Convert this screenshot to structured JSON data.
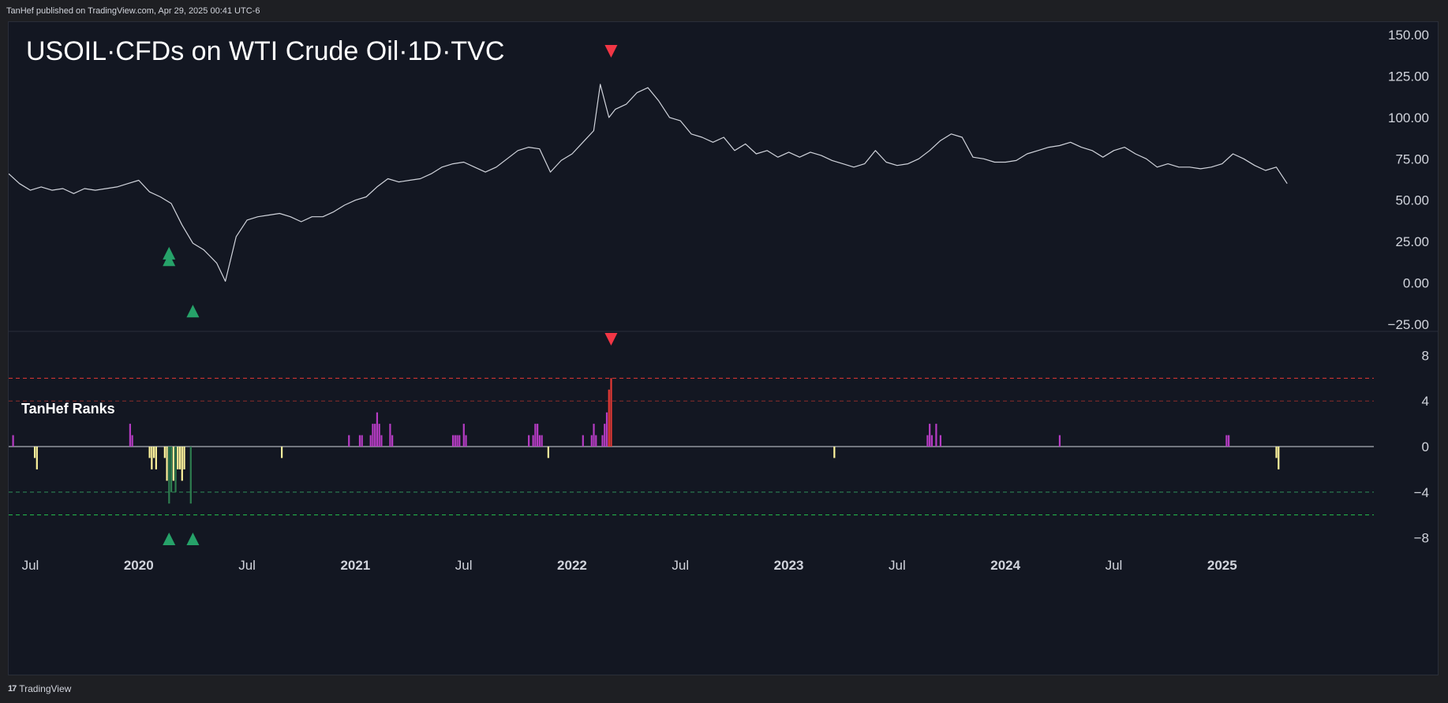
{
  "header": {
    "published": "TanHef published on TradingView.com, Apr 29, 2025 00:41 UTC-6"
  },
  "footer": {
    "brand": "TradingView",
    "logo_glyph": "17"
  },
  "colors": {
    "background": "#131722",
    "price_line": "#d1d4dc",
    "rank_positive": "#b63cc4",
    "rank_negative": "#fff59d",
    "rank_extreme_high": "#e53935",
    "rank_extreme_low": "#2e7d4f",
    "signal_up": "#26a269",
    "signal_down": "#f23645"
  },
  "chart_data": [
    {
      "type": "line",
      "title": "USOIL·CFDs on WTI Crude Oil·1D·TVC",
      "y_ticks": [
        "150.00",
        "125.00",
        "100.00",
        "75.00",
        "50.00",
        "25.00",
        "0.00",
        "−25.00"
      ],
      "ylim": [
        -25,
        150
      ],
      "x_ticks": [
        "Jul",
        "2020",
        "Jul",
        "2021",
        "Jul",
        "2022",
        "Jul",
        "2023",
        "Jul",
        "2024",
        "Jul",
        "2025"
      ],
      "x_tick_years": [
        2019.5,
        2020.0,
        2020.5,
        2021.0,
        2021.5,
        2022.0,
        2022.5,
        2023.0,
        2023.5,
        2024.0,
        2024.5,
        2025.0
      ],
      "xlim": [
        2019.4,
        2025.7
      ],
      "series": [
        {
          "x": [
            2019.4,
            2019.45,
            2019.5,
            2019.55,
            2019.6,
            2019.65,
            2019.7,
            2019.75,
            2019.8,
            2019.85,
            2019.9,
            2019.95,
            2020.0,
            2020.05,
            2020.1,
            2020.15,
            2020.2,
            2020.25,
            2020.3,
            2020.33,
            2020.36,
            2020.4,
            2020.45,
            2020.5,
            2020.55,
            2020.6,
            2020.65,
            2020.7,
            2020.75,
            2020.8,
            2020.85,
            2020.9,
            2020.95,
            2021.0,
            2021.05,
            2021.1,
            2021.15,
            2021.2,
            2021.25,
            2021.3,
            2021.35,
            2021.4,
            2021.45,
            2021.5,
            2021.55,
            2021.6,
            2021.65,
            2021.7,
            2021.75,
            2021.8,
            2021.85,
            2021.9,
            2021.95,
            2022.0,
            2022.05,
            2022.1,
            2022.13,
            2022.17,
            2022.2,
            2022.25,
            2022.3,
            2022.35,
            2022.4,
            2022.45,
            2022.5,
            2022.55,
            2022.6,
            2022.65,
            2022.7,
            2022.75,
            2022.8,
            2022.85,
            2022.9,
            2022.95,
            2023.0,
            2023.05,
            2023.1,
            2023.15,
            2023.2,
            2023.25,
            2023.3,
            2023.35,
            2023.4,
            2023.45,
            2023.5,
            2023.55,
            2023.6,
            2023.65,
            2023.7,
            2023.75,
            2023.8,
            2023.85,
            2023.9,
            2023.95,
            2024.0,
            2024.05,
            2024.1,
            2024.15,
            2024.2,
            2024.25,
            2024.3,
            2024.35,
            2024.4,
            2024.45,
            2024.5,
            2024.55,
            2024.6,
            2024.65,
            2024.7,
            2024.75,
            2024.8,
            2024.85,
            2024.9,
            2024.95,
            2025.0,
            2025.05,
            2025.1,
            2025.15,
            2025.2,
            2025.25,
            2025.3
          ],
          "y": [
            66,
            60,
            56,
            58,
            56,
            57,
            54,
            57,
            56,
            57,
            58,
            60,
            62,
            55,
            52,
            48,
            35,
            24,
            20,
            16,
            12,
            1,
            28,
            38,
            40,
            41,
            42,
            40,
            37,
            40,
            40,
            43,
            47,
            50,
            52,
            58,
            63,
            61,
            62,
            63,
            66,
            70,
            72,
            73,
            70,
            67,
            70,
            75,
            80,
            82,
            81,
            67,
            74,
            78,
            85,
            92,
            120,
            100,
            105,
            108,
            115,
            118,
            110,
            100,
            98,
            90,
            88,
            85,
            88,
            80,
            84,
            78,
            80,
            76,
            79,
            76,
            79,
            77,
            74,
            72,
            70,
            72,
            80,
            73,
            71,
            72,
            75,
            80,
            86,
            90,
            88,
            76,
            75,
            73,
            73,
            74,
            78,
            80,
            82,
            83,
            85,
            82,
            80,
            76,
            80,
            82,
            78,
            75,
            70,
            72,
            70,
            70,
            69,
            70,
            72,
            78,
            75,
            71,
            68,
            70,
            60
          ]
        }
      ]
    },
    {
      "type": "bar",
      "title": "TanHef Ranks",
      "y_ticks": [
        "8",
        "4",
        "0",
        "−4",
        "−8"
      ],
      "ylim": [
        -9,
        9
      ],
      "reference_lines": [
        6,
        4,
        -4,
        -6
      ],
      "bars": [
        {
          "x": 2019.42,
          "v": 1
        },
        {
          "x": 2019.52,
          "v": -1
        },
        {
          "x": 2019.53,
          "v": -2
        },
        {
          "x": 2019.96,
          "v": 2
        },
        {
          "x": 2019.97,
          "v": 1
        },
        {
          "x": 2020.05,
          "v": -1
        },
        {
          "x": 2020.06,
          "v": -2
        },
        {
          "x": 2020.07,
          "v": -1
        },
        {
          "x": 2020.08,
          "v": -2
        },
        {
          "x": 2020.12,
          "v": -1
        },
        {
          "x": 2020.13,
          "v": -3
        },
        {
          "x": 2020.14,
          "v": -5
        },
        {
          "x": 2020.15,
          "v": -4
        },
        {
          "x": 2020.16,
          "v": -3
        },
        {
          "x": 2020.17,
          "v": -4
        },
        {
          "x": 2020.18,
          "v": -2
        },
        {
          "x": 2020.19,
          "v": -2
        },
        {
          "x": 2020.2,
          "v": -3
        },
        {
          "x": 2020.21,
          "v": -2
        },
        {
          "x": 2020.24,
          "v": -5
        },
        {
          "x": 2020.66,
          "v": -1
        },
        {
          "x": 2020.97,
          "v": 1
        },
        {
          "x": 2021.02,
          "v": 1
        },
        {
          "x": 2021.03,
          "v": 1
        },
        {
          "x": 2021.07,
          "v": 1
        },
        {
          "x": 2021.08,
          "v": 2
        },
        {
          "x": 2021.09,
          "v": 2
        },
        {
          "x": 2021.1,
          "v": 3
        },
        {
          "x": 2021.11,
          "v": 2
        },
        {
          "x": 2021.12,
          "v": 1
        },
        {
          "x": 2021.16,
          "v": 2
        },
        {
          "x": 2021.17,
          "v": 1
        },
        {
          "x": 2021.45,
          "v": 1
        },
        {
          "x": 2021.46,
          "v": 1
        },
        {
          "x": 2021.47,
          "v": 1
        },
        {
          "x": 2021.48,
          "v": 1
        },
        {
          "x": 2021.5,
          "v": 2
        },
        {
          "x": 2021.51,
          "v": 1
        },
        {
          "x": 2021.8,
          "v": 1
        },
        {
          "x": 2021.82,
          "v": 1
        },
        {
          "x": 2021.83,
          "v": 2
        },
        {
          "x": 2021.84,
          "v": 2
        },
        {
          "x": 2021.85,
          "v": 1
        },
        {
          "x": 2021.86,
          "v": 1
        },
        {
          "x": 2021.89,
          "v": -1
        },
        {
          "x": 2022.05,
          "v": 1
        },
        {
          "x": 2022.09,
          "v": 1
        },
        {
          "x": 2022.1,
          "v": 2
        },
        {
          "x": 2022.11,
          "v": 1
        },
        {
          "x": 2022.14,
          "v": 1
        },
        {
          "x": 2022.15,
          "v": 2
        },
        {
          "x": 2022.16,
          "v": 3
        },
        {
          "x": 2022.17,
          "v": 5
        },
        {
          "x": 2022.18,
          "v": 6
        },
        {
          "x": 2023.21,
          "v": -1
        },
        {
          "x": 2023.64,
          "v": 1
        },
        {
          "x": 2023.65,
          "v": 2
        },
        {
          "x": 2023.66,
          "v": 1
        },
        {
          "x": 2023.68,
          "v": 2
        },
        {
          "x": 2023.7,
          "v": 1
        },
        {
          "x": 2024.25,
          "v": 1
        },
        {
          "x": 2025.02,
          "v": 1
        },
        {
          "x": 2025.03,
          "v": 1
        },
        {
          "x": 2025.25,
          "v": -1
        },
        {
          "x": 2025.26,
          "v": -2
        }
      ]
    }
  ],
  "signals": {
    "price_up": [
      {
        "x": 2020.14,
        "y": 14
      },
      {
        "x": 2020.14,
        "y": 18
      },
      {
        "x": 2020.25,
        "y": -17
      }
    ],
    "price_down": [
      {
        "x": 2022.18,
        "y": 140
      }
    ],
    "rank_up": [
      2020.14,
      2020.25
    ],
    "rank_down": [
      2022.18
    ]
  }
}
